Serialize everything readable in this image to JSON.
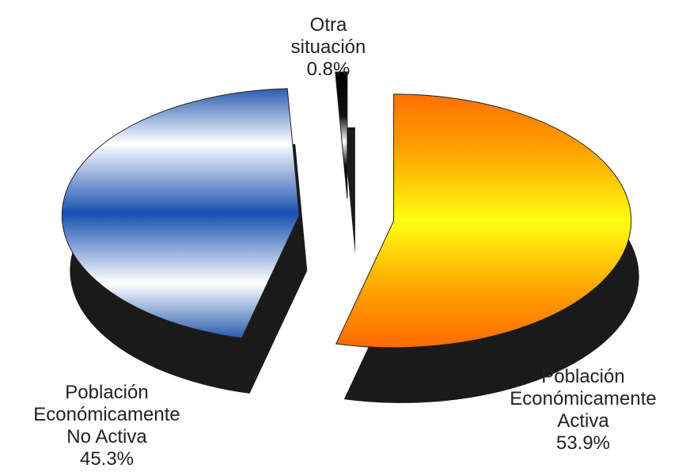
{
  "chart_data": {
    "type": "pie",
    "style": "3d-exploded",
    "title": "",
    "slices": [
      {
        "name": "Población Económicamente Activa",
        "label_lines": [
          "Población",
          "Económicamente",
          "Activa"
        ],
        "value": 53.9,
        "value_label": "53.9%",
        "color": "#ffb000"
      },
      {
        "name": "Población Económicamente No Activa",
        "label_lines": [
          "Población",
          "Económicamente",
          "No Activa"
        ],
        "value": 45.3,
        "value_label": "45.3%",
        "color": "#2a5cb0"
      },
      {
        "name": "Otra situación",
        "label_lines": [
          "Otra",
          "situación"
        ],
        "value": 0.8,
        "value_label": "0.8%",
        "color": "#000000"
      }
    ],
    "legend": "none",
    "shadow_color": "#1a1a1a"
  }
}
